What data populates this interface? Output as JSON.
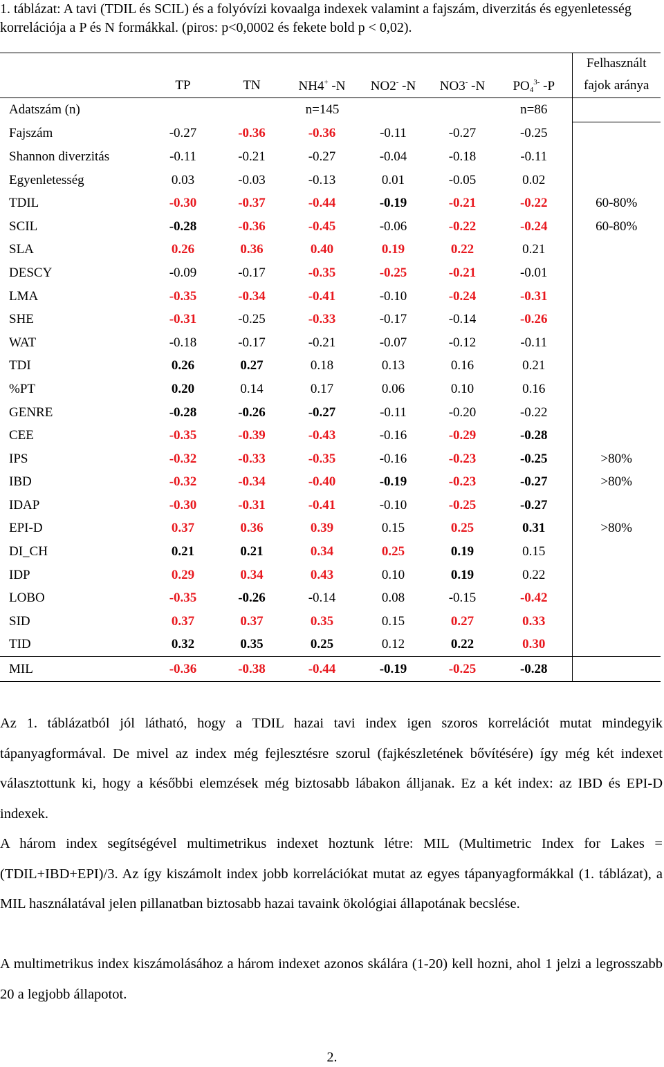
{
  "caption": "1. táblázat: A tavi (TDIL és SCIL) és a folyóvízi kovaalga indexek valamint a fajszám, diverzitás és egyenletesség korrelációja a P és N formákkal. (piros: p<0,0002 és fekete bold p < 0,02).",
  "table": {
    "header_felh_1": "Felhasznált",
    "header_felh_2": "fajok aránya",
    "headers": [
      {
        "main": "TP",
        "sup": "",
        "sub": "",
        "suffix": ""
      },
      {
        "main": "TN",
        "sup": "",
        "sub": "",
        "suffix": ""
      },
      {
        "main": "NH4",
        "sup": "+",
        "sub": "",
        "suffix": " -N"
      },
      {
        "main": "NO2",
        "sup": "-",
        "sub": "",
        "suffix": " -N"
      },
      {
        "main": "NO3",
        "sup": "-",
        "sub": "",
        "suffix": " -N"
      },
      {
        "main": "PO",
        "sup": "3-",
        "sub": "4",
        "suffix": " -P"
      }
    ],
    "n_label": "Adatszám (n)",
    "n_1": "n=145",
    "n_2": "n=86",
    "rows": [
      {
        "label": "Fajszám",
        "cells": [
          {
            "v": "-0.27",
            "s": ""
          },
          {
            "v": "-0.36",
            "s": "r"
          },
          {
            "v": "-0.36",
            "s": "r"
          },
          {
            "v": "-0.11",
            "s": ""
          },
          {
            "v": "-0.27",
            "s": ""
          },
          {
            "v": "-0.25",
            "s": ""
          }
        ],
        "felh": ""
      },
      {
        "label": "Shannon diverzitás",
        "cells": [
          {
            "v": "-0.11",
            "s": ""
          },
          {
            "v": "-0.21",
            "s": ""
          },
          {
            "v": "-0.27",
            "s": ""
          },
          {
            "v": "-0.04",
            "s": ""
          },
          {
            "v": "-0.18",
            "s": ""
          },
          {
            "v": "-0.11",
            "s": ""
          }
        ],
        "felh": ""
      },
      {
        "label": "Egyenletesség",
        "cells": [
          {
            "v": "0.03",
            "s": ""
          },
          {
            "v": "-0.03",
            "s": ""
          },
          {
            "v": "-0.13",
            "s": ""
          },
          {
            "v": "0.01",
            "s": ""
          },
          {
            "v": "-0.05",
            "s": ""
          },
          {
            "v": "0.02",
            "s": ""
          }
        ],
        "felh": ""
      },
      {
        "label": "TDIL",
        "cells": [
          {
            "v": "-0.30",
            "s": "r"
          },
          {
            "v": "-0.37",
            "s": "r"
          },
          {
            "v": "-0.44",
            "s": "r"
          },
          {
            "v": "-0.19",
            "s": "b"
          },
          {
            "v": "-0.21",
            "s": "r"
          },
          {
            "v": "-0.22",
            "s": "r"
          }
        ],
        "felh": "60-80%"
      },
      {
        "label": "SCIL",
        "cells": [
          {
            "v": "-0.28",
            "s": "b"
          },
          {
            "v": "-0.36",
            "s": "r"
          },
          {
            "v": "-0.45",
            "s": "r"
          },
          {
            "v": "-0.06",
            "s": ""
          },
          {
            "v": "-0.22",
            "s": "r"
          },
          {
            "v": "-0.24",
            "s": "r"
          }
        ],
        "felh": "60-80%"
      },
      {
        "label": "SLA",
        "cells": [
          {
            "v": "0.26",
            "s": "r"
          },
          {
            "v": "0.36",
            "s": "r"
          },
          {
            "v": "0.40",
            "s": "r"
          },
          {
            "v": "0.19",
            "s": "r"
          },
          {
            "v": "0.22",
            "s": "r"
          },
          {
            "v": "0.21",
            "s": ""
          }
        ],
        "felh": ""
      },
      {
        "label": "DESCY",
        "cells": [
          {
            "v": "-0.09",
            "s": ""
          },
          {
            "v": "-0.17",
            "s": ""
          },
          {
            "v": "-0.35",
            "s": "r"
          },
          {
            "v": "-0.25",
            "s": "r"
          },
          {
            "v": "-0.21",
            "s": "r"
          },
          {
            "v": "-0.01",
            "s": ""
          }
        ],
        "felh": ""
      },
      {
        "label": "LMA",
        "cells": [
          {
            "v": "-0.35",
            "s": "r"
          },
          {
            "v": "-0.34",
            "s": "r"
          },
          {
            "v": "-0.41",
            "s": "r"
          },
          {
            "v": "-0.10",
            "s": ""
          },
          {
            "v": "-0.24",
            "s": "r"
          },
          {
            "v": "-0.31",
            "s": "r"
          }
        ],
        "felh": ""
      },
      {
        "label": "SHE",
        "cells": [
          {
            "v": "-0.31",
            "s": "r"
          },
          {
            "v": "-0.25",
            "s": ""
          },
          {
            "v": "-0.33",
            "s": "r"
          },
          {
            "v": "-0.17",
            "s": ""
          },
          {
            "v": "-0.14",
            "s": ""
          },
          {
            "v": "-0.26",
            "s": "r"
          }
        ],
        "felh": ""
      },
      {
        "label": "WAT",
        "cells": [
          {
            "v": "-0.18",
            "s": ""
          },
          {
            "v": "-0.17",
            "s": ""
          },
          {
            "v": "-0.21",
            "s": ""
          },
          {
            "v": "-0.07",
            "s": ""
          },
          {
            "v": "-0.12",
            "s": ""
          },
          {
            "v": "-0.11",
            "s": ""
          }
        ],
        "felh": ""
      },
      {
        "label": "TDI",
        "cells": [
          {
            "v": "0.26",
            "s": "b"
          },
          {
            "v": "0.27",
            "s": "b"
          },
          {
            "v": "0.18",
            "s": ""
          },
          {
            "v": "0.13",
            "s": ""
          },
          {
            "v": "0.16",
            "s": ""
          },
          {
            "v": "0.21",
            "s": ""
          }
        ],
        "felh": ""
      },
      {
        "label": "%PT",
        "cells": [
          {
            "v": "0.20",
            "s": "b"
          },
          {
            "v": "0.14",
            "s": ""
          },
          {
            "v": "0.17",
            "s": ""
          },
          {
            "v": "0.06",
            "s": ""
          },
          {
            "v": "0.10",
            "s": ""
          },
          {
            "v": "0.16",
            "s": ""
          }
        ],
        "felh": ""
      },
      {
        "label": "GENRE",
        "cells": [
          {
            "v": "-0.28",
            "s": "b"
          },
          {
            "v": "-0.26",
            "s": "b"
          },
          {
            "v": "-0.27",
            "s": "b"
          },
          {
            "v": "-0.11",
            "s": ""
          },
          {
            "v": "-0.20",
            "s": ""
          },
          {
            "v": "-0.22",
            "s": ""
          }
        ],
        "felh": ""
      },
      {
        "label": "CEE",
        "cells": [
          {
            "v": "-0.35",
            "s": "r"
          },
          {
            "v": "-0.39",
            "s": "r"
          },
          {
            "v": "-0.43",
            "s": "r"
          },
          {
            "v": "-0.16",
            "s": ""
          },
          {
            "v": "-0.29",
            "s": "r"
          },
          {
            "v": "-0.28",
            "s": "b"
          }
        ],
        "felh": ""
      },
      {
        "label": "IPS",
        "cells": [
          {
            "v": "-0.32",
            "s": "r"
          },
          {
            "v": "-0.33",
            "s": "r"
          },
          {
            "v": "-0.35",
            "s": "r"
          },
          {
            "v": "-0.16",
            "s": ""
          },
          {
            "v": "-0.23",
            "s": "r"
          },
          {
            "v": "-0.25",
            "s": "b"
          }
        ],
        "felh": ">80%"
      },
      {
        "label": "IBD",
        "cells": [
          {
            "v": "-0.32",
            "s": "r"
          },
          {
            "v": "-0.34",
            "s": "r"
          },
          {
            "v": "-0.40",
            "s": "r"
          },
          {
            "v": "-0.19",
            "s": "b"
          },
          {
            "v": "-0.23",
            "s": "r"
          },
          {
            "v": "-0.27",
            "s": "b"
          }
        ],
        "felh": ">80%"
      },
      {
        "label": "IDAP",
        "cells": [
          {
            "v": "-0.30",
            "s": "r"
          },
          {
            "v": "-0.31",
            "s": "r"
          },
          {
            "v": "-0.41",
            "s": "r"
          },
          {
            "v": "-0.10",
            "s": ""
          },
          {
            "v": "-0.25",
            "s": "r"
          },
          {
            "v": "-0.27",
            "s": "b"
          }
        ],
        "felh": ""
      },
      {
        "label": "EPI-D",
        "cells": [
          {
            "v": "0.37",
            "s": "r"
          },
          {
            "v": "0.36",
            "s": "r"
          },
          {
            "v": "0.39",
            "s": "r"
          },
          {
            "v": "0.15",
            "s": ""
          },
          {
            "v": "0.25",
            "s": "r"
          },
          {
            "v": "0.31",
            "s": "b"
          }
        ],
        "felh": ">80%"
      },
      {
        "label": "DI_CH",
        "cells": [
          {
            "v": "0.21",
            "s": "b"
          },
          {
            "v": "0.21",
            "s": "b"
          },
          {
            "v": "0.34",
            "s": "r"
          },
          {
            "v": "0.25",
            "s": "r"
          },
          {
            "v": "0.19",
            "s": "b"
          },
          {
            "v": "0.15",
            "s": ""
          }
        ],
        "felh": ""
      },
      {
        "label": "IDP",
        "cells": [
          {
            "v": "0.29",
            "s": "r"
          },
          {
            "v": "0.34",
            "s": "r"
          },
          {
            "v": "0.43",
            "s": "r"
          },
          {
            "v": "0.10",
            "s": ""
          },
          {
            "v": "0.19",
            "s": "b"
          },
          {
            "v": "0.22",
            "s": ""
          }
        ],
        "felh": ""
      },
      {
        "label": "LOBO",
        "cells": [
          {
            "v": "-0.35",
            "s": "r"
          },
          {
            "v": "-0.26",
            "s": "b"
          },
          {
            "v": "-0.14",
            "s": ""
          },
          {
            "v": "0.08",
            "s": ""
          },
          {
            "v": "-0.15",
            "s": ""
          },
          {
            "v": "-0.42",
            "s": "r"
          }
        ],
        "felh": ""
      },
      {
        "label": "SID",
        "cells": [
          {
            "v": "0.37",
            "s": "r"
          },
          {
            "v": "0.37",
            "s": "r"
          },
          {
            "v": "0.35",
            "s": "r"
          },
          {
            "v": "0.15",
            "s": ""
          },
          {
            "v": "0.27",
            "s": "r"
          },
          {
            "v": "0.33",
            "s": "r"
          }
        ],
        "felh": ""
      },
      {
        "label": "TID",
        "cells": [
          {
            "v": "0.32",
            "s": "b"
          },
          {
            "v": "0.35",
            "s": "b"
          },
          {
            "v": "0.25",
            "s": "b"
          },
          {
            "v": "0.12",
            "s": ""
          },
          {
            "v": "0.22",
            "s": "b"
          },
          {
            "v": "0.30",
            "s": "r"
          }
        ],
        "felh": ""
      },
      {
        "label": "MIL",
        "cells": [
          {
            "v": "-0.36",
            "s": "r"
          },
          {
            "v": "-0.38",
            "s": "r"
          },
          {
            "v": "-0.44",
            "s": "r"
          },
          {
            "v": "-0.19",
            "s": "b"
          },
          {
            "v": "-0.25",
            "s": "r"
          },
          {
            "v": "-0.28",
            "s": "b"
          }
        ],
        "felh": ""
      }
    ]
  },
  "paragraphs": [
    "Az 1. táblázatból jól látható, hogy a TDIL hazai tavi index igen szoros korrelációt mutat mindegyik tápanyagformával. De mivel az index még fejlesztésre szorul (fajkészletének bővítésére) így még két indexet választottunk ki, hogy a későbbi elemzések még biztosabb lábakon álljanak. Ez a két index: az IBD és EPI-D indexek.",
    "A három index segítségével multimetrikus indexet hoztunk létre: MIL (Multimetric Index for Lakes = (TDIL+IBD+EPI)/3. Az így kiszámolt index jobb korrelációkat mutat az egyes tápanyagformákkal (1. táblázat), a MIL használatával jelen pillanatban biztosabb hazai tavaink ökológiai állapotának becslése.",
    "A multimetrikus index kiszámolásához a három indexet azonos skálára (1-20) kell hozni, ahol 1 jelzi a legrosszabb 20 a legjobb állapotot."
  ],
  "page_number": "2.",
  "colors": {
    "significant_red": "#e8181e",
    "text": "#000000"
  }
}
